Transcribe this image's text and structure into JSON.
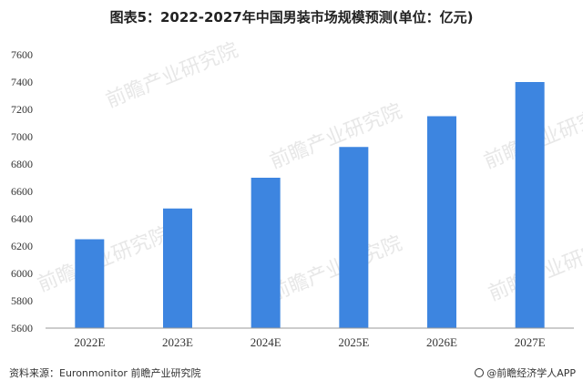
{
  "footer": {
    "source": "资料来源：Euronmonitor 前瞻产业研究院",
    "brand": "@前瞻经济学人APP"
  },
  "watermark": {
    "text": "前瞻产业研究院"
  },
  "colors": {
    "bar": "#3d85e0",
    "axis": "#999999"
  },
  "chart_data": {
    "type": "bar",
    "title": "图表5：2022-2027年中国男装市场规模预测(单位：亿元)",
    "categories": [
      "2022E",
      "2023E",
      "2024E",
      "2025E",
      "2026E",
      "2027E"
    ],
    "values": [
      6250,
      6475,
      6700,
      6925,
      7150,
      7400
    ],
    "ylim": [
      5600,
      7600
    ],
    "yticks": [
      "5600",
      "5800",
      "6000",
      "6200",
      "6400",
      "6600",
      "6800",
      "7000",
      "7200",
      "7400",
      "7600"
    ],
    "grid": false,
    "legend": "none"
  }
}
